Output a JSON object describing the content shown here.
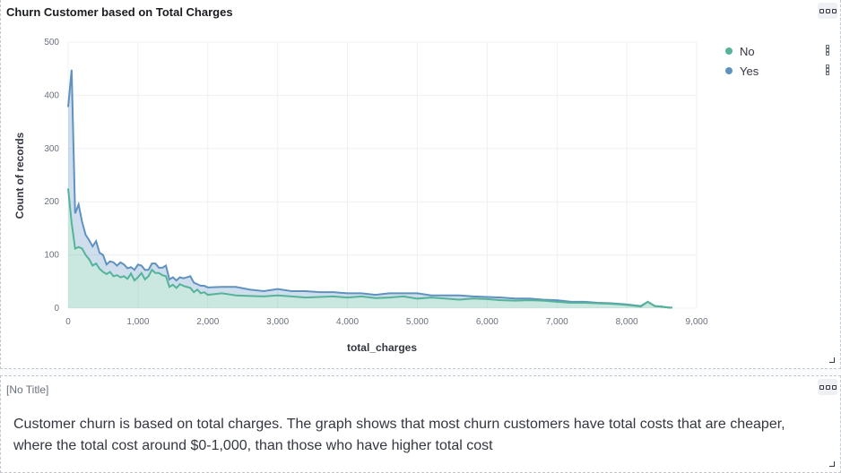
{
  "chart_panel": {
    "title": "Churn Customer based on Total Charges"
  },
  "chart_data": {
    "type": "area",
    "xlabel": "total_charges",
    "ylabel": "Count of records",
    "xlim": [
      0,
      9000
    ],
    "ylim": [
      0,
      500
    ],
    "x_ticks": [
      "0",
      "1,000",
      "2,000",
      "3,000",
      "4,000",
      "5,000",
      "6,000",
      "7,000",
      "8,000",
      "9,000"
    ],
    "y_ticks": [
      "0",
      "100",
      "200",
      "300",
      "400",
      "500"
    ],
    "stacked": true,
    "legend_position": "top-right",
    "series": [
      {
        "name": "No",
        "color": "#54b399",
        "x": [
          0,
          50,
          100,
          150,
          200,
          250,
          300,
          350,
          400,
          450,
          500,
          550,
          600,
          650,
          700,
          750,
          800,
          850,
          900,
          950,
          1000,
          1050,
          1100,
          1150,
          1200,
          1250,
          1300,
          1350,
          1400,
          1450,
          1500,
          1550,
          1600,
          1650,
          1700,
          1750,
          1800,
          1850,
          1900,
          1950,
          2000,
          2200,
          2400,
          2600,
          2800,
          3000,
          3200,
          3400,
          3600,
          3800,
          4000,
          4200,
          4400,
          4600,
          4800,
          5000,
          5200,
          5400,
          5600,
          5800,
          6000,
          6200,
          6400,
          6600,
          6800,
          7000,
          7200,
          7400,
          7600,
          7800,
          8000,
          8200,
          8300,
          8400,
          8500,
          8600,
          8650
        ],
        "values": [
          225,
          160,
          112,
          115,
          112,
          100,
          92,
          80,
          84,
          74,
          68,
          64,
          68,
          60,
          62,
          58,
          60,
          55,
          65,
          52,
          58,
          66,
          54,
          60,
          72,
          66,
          66,
          62,
          60,
          40,
          44,
          38,
          45,
          42,
          40,
          38,
          30,
          35,
          28,
          30,
          25,
          28,
          24,
          23,
          22,
          24,
          22,
          20,
          21,
          22,
          20,
          22,
          19,
          20,
          22,
          18,
          20,
          18,
          16,
          18,
          17,
          15,
          14,
          15,
          14,
          12,
          10,
          10,
          9,
          8,
          6,
          3,
          12,
          4,
          3,
          1,
          1
        ]
      },
      {
        "name": "Yes",
        "color": "#6092c0",
        "x": [
          0,
          50,
          100,
          150,
          200,
          250,
          300,
          350,
          400,
          450,
          500,
          550,
          600,
          650,
          700,
          750,
          800,
          850,
          900,
          950,
          1000,
          1050,
          1100,
          1150,
          1200,
          1250,
          1300,
          1350,
          1400,
          1450,
          1500,
          1550,
          1600,
          1650,
          1700,
          1750,
          1800,
          1850,
          1900,
          1950,
          2000,
          2200,
          2400,
          2600,
          2800,
          3000,
          3200,
          3400,
          3600,
          3800,
          4000,
          4200,
          4400,
          4600,
          4800,
          5000,
          5200,
          5400,
          5600,
          5800,
          6000,
          6200,
          6400,
          6600,
          6800,
          7000,
          7200,
          7400,
          7600,
          7800,
          8000,
          8200,
          8300,
          8400,
          8500,
          8600,
          8650
        ],
        "values": [
          153,
          288,
          66,
          80,
          50,
          38,
          36,
          36,
          42,
          30,
          32,
          18,
          20,
          26,
          18,
          28,
          22,
          20,
          12,
          20,
          24,
          14,
          18,
          12,
          12,
          18,
          10,
          14,
          20,
          14,
          14,
          14,
          13,
          14,
          18,
          22,
          18,
          10,
          14,
          12,
          14,
          12,
          16,
          12,
          10,
          12,
          10,
          12,
          9,
          8,
          8,
          6,
          6,
          8,
          6,
          10,
          4,
          6,
          8,
          4,
          4,
          5,
          4,
          3,
          2,
          3,
          2,
          2,
          1,
          1,
          1,
          1,
          0,
          0,
          0,
          0,
          0
        ]
      }
    ]
  },
  "text_panel": {
    "title": "[No Title]",
    "body": "Customer churn is based on total charges. The graph shows that most churn customers have total costs that are cheaper, where the total cost around $0-1,000, than those who have higher total cost"
  }
}
